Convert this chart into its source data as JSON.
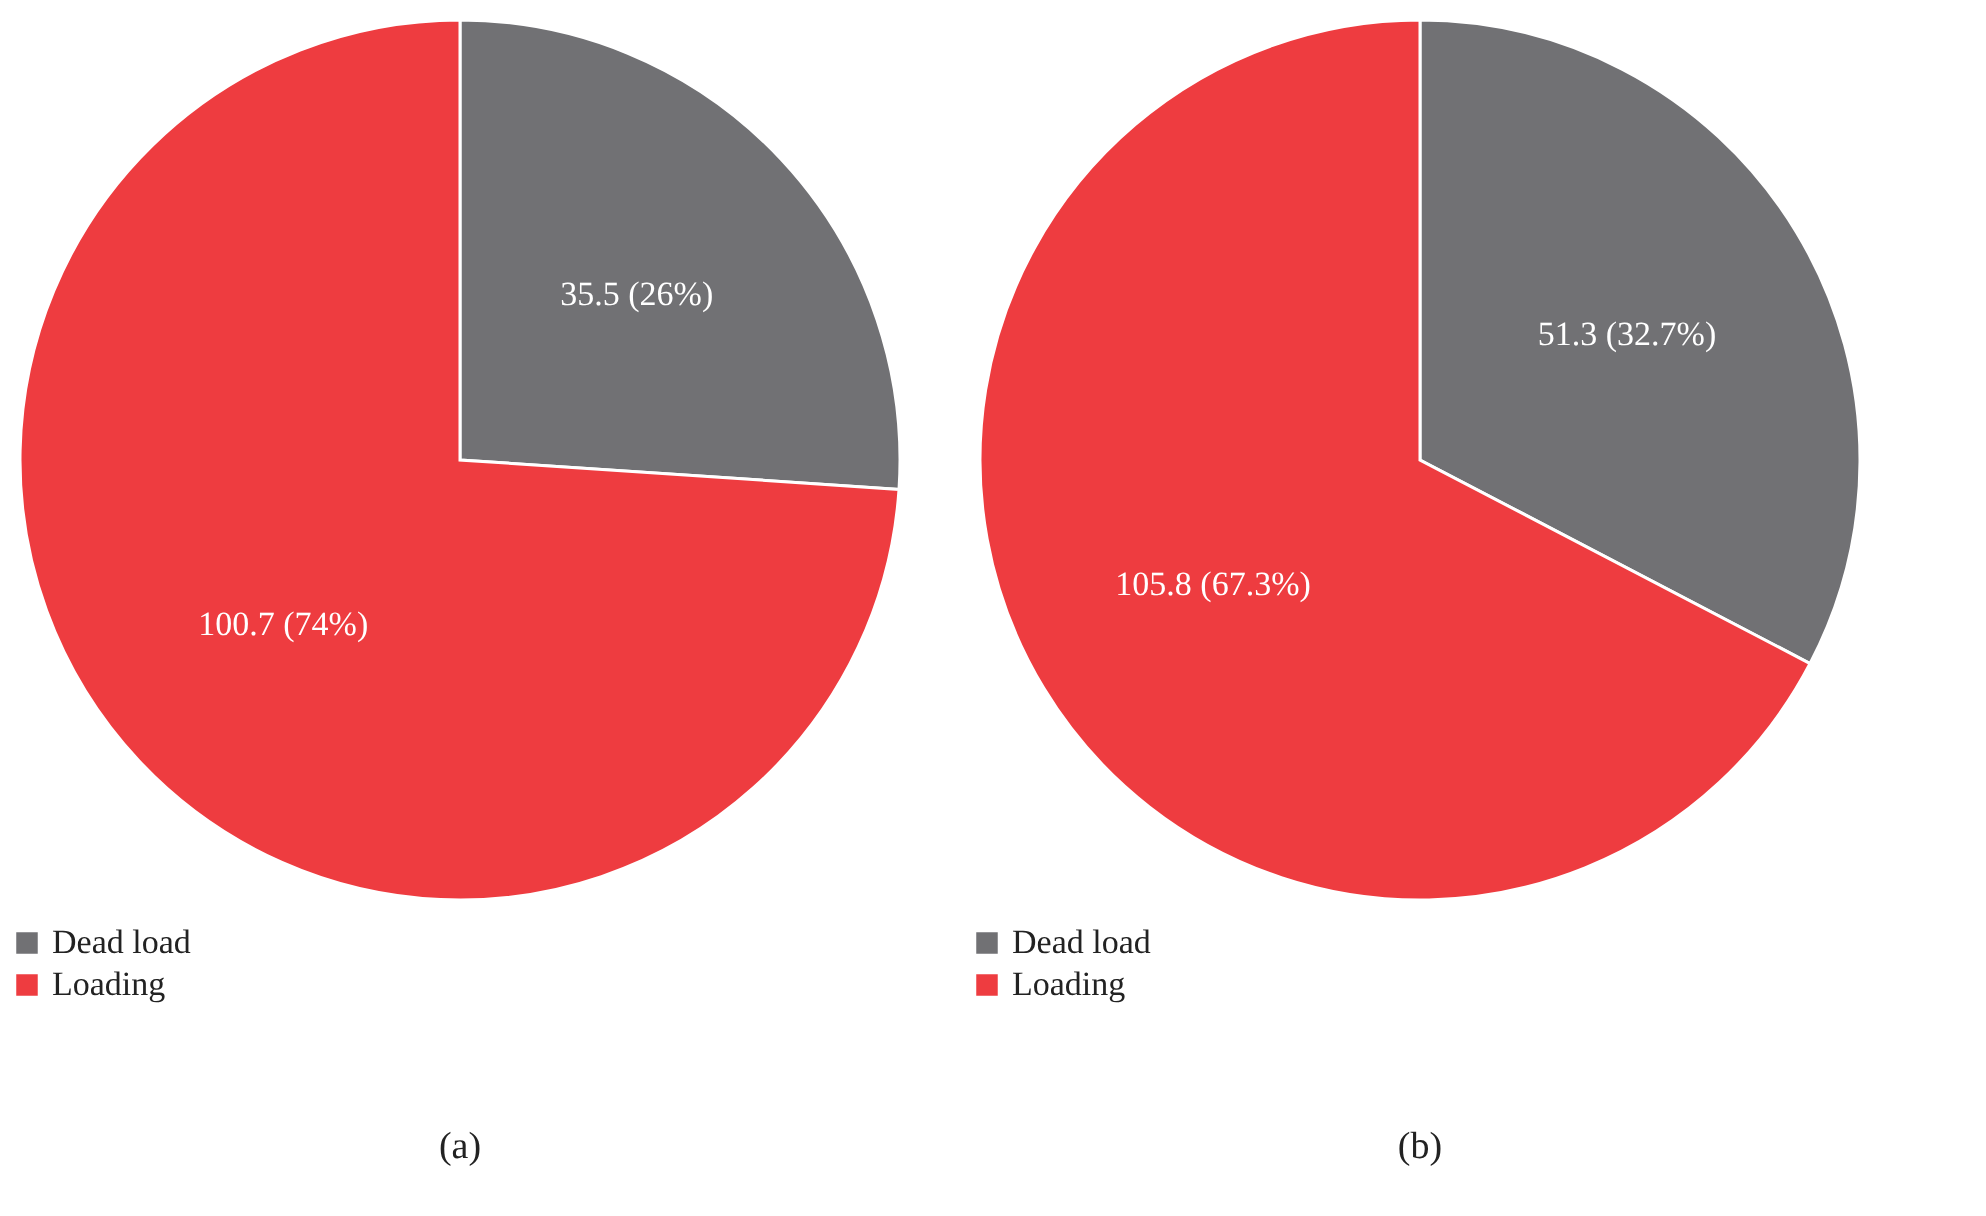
{
  "chart_data": [
    {
      "type": "pie",
      "title": "(a)",
      "categories": [
        "Dead load",
        "Loading"
      ],
      "values": [
        35.5,
        100.7
      ],
      "colors": [
        "#717174",
        "#ee3c40"
      ],
      "value_labels": [
        "35.5 (26%)",
        "100.7 (74%)"
      ],
      "legend": "bottom left"
    },
    {
      "type": "pie",
      "title": "(b)",
      "categories": [
        "Dead load",
        "Loading"
      ],
      "values": [
        51.3,
        105.8
      ],
      "colors": [
        "#717174",
        "#ee3c40"
      ],
      "value_labels": [
        "51.3 (32.7%)",
        "105.8 (67.3%)"
      ],
      "legend": "bottom left"
    }
  ]
}
